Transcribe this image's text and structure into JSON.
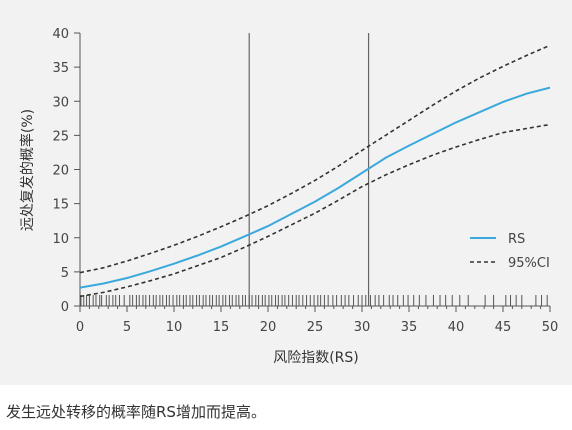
{
  "caption": "发生远处转移的概率随RS增加而提高。",
  "chart_data": {
    "type": "line",
    "xlabel": "风险指数(RS)",
    "ylabel": "远处复发的概率(%)",
    "xlim": [
      0,
      50
    ],
    "ylim": [
      0,
      40
    ],
    "xticks": [
      0,
      5,
      10,
      15,
      20,
      25,
      30,
      35,
      40,
      45,
      50
    ],
    "yticks": [
      0,
      5,
      10,
      15,
      20,
      25,
      30,
      35,
      40
    ],
    "grid": false,
    "legend_position": "right",
    "vertical_lines": [
      18,
      30.7
    ],
    "series": [
      {
        "name": "RS",
        "color": "#3ba9dc",
        "style": "solid",
        "x": [
          0,
          2.5,
          5,
          7.5,
          10,
          12.5,
          15,
          17.5,
          20,
          22.5,
          25,
          27.5,
          30,
          32.5,
          35,
          37.5,
          40,
          42.5,
          45,
          47.5,
          50
        ],
        "y": [
          2.7,
          3.3,
          4.1,
          5.1,
          6.2,
          7.4,
          8.7,
          10.2,
          11.7,
          13.5,
          15.3,
          17.3,
          19.5,
          21.7,
          23.5,
          25.2,
          26.9,
          28.4,
          29.9,
          31.1,
          32.0
        ]
      },
      {
        "name": "95%CI",
        "color": "#333333",
        "style": "dashed",
        "x": [
          0,
          2.5,
          5,
          7.5,
          10,
          12.5,
          15,
          17.5,
          20,
          22.5,
          25,
          27.5,
          30,
          32.5,
          35,
          37.5,
          40,
          42.5,
          45,
          47.5,
          50
        ],
        "y": [
          4.9,
          5.6,
          6.6,
          7.7,
          8.9,
          10.2,
          11.6,
          13.1,
          14.7,
          16.5,
          18.4,
          20.5,
          22.8,
          25.0,
          27.2,
          29.4,
          31.5,
          33.4,
          35.1,
          36.7,
          38.2
        ]
      },
      {
        "name": "",
        "color": "#333333",
        "style": "dashed",
        "x": [
          0,
          2.5,
          5,
          7.5,
          10,
          12.5,
          15,
          17.5,
          20,
          22.5,
          25,
          27.5,
          30,
          32.5,
          35,
          37.5,
          40,
          42.5,
          45,
          47.5,
          50
        ],
        "y": [
          1.4,
          2.0,
          2.8,
          3.7,
          4.7,
          5.9,
          7.1,
          8.6,
          10.2,
          11.9,
          13.6,
          15.5,
          17.5,
          19.2,
          20.7,
          22.1,
          23.3,
          24.4,
          25.4,
          26.0,
          26.6
        ]
      }
    ],
    "rug": [
      0.1,
      0.4,
      0.7,
      1.0,
      1.4,
      1.7,
      2.1,
      2.3,
      2.8,
      3.1,
      3.5,
      3.8,
      4.2,
      4.7,
      5.3,
      5.6,
      6.0,
      6.3,
      6.7,
      7.0,
      7.4,
      7.8,
      8.1,
      8.5,
      8.8,
      9.2,
      9.5,
      9.9,
      10.3,
      10.6,
      11.0,
      11.3,
      11.7,
      12.0,
      12.4,
      12.7,
      13.1,
      13.4,
      13.8,
      14.1,
      14.5,
      14.8,
      15.2,
      15.5,
      15.9,
      16.2,
      16.6,
      16.9,
      17.3,
      17.6,
      18.0,
      18.3,
      18.7,
      19.0,
      19.4,
      19.7,
      20.1,
      20.4,
      20.8,
      21.1,
      21.5,
      21.8,
      22.2,
      22.6,
      23.0,
      23.3,
      23.7,
      24.1,
      24.5,
      24.9,
      25.3,
      25.6,
      26.0,
      26.4,
      26.9,
      27.3,
      27.8,
      28.2,
      28.6,
      29.1,
      29.6,
      30.0,
      30.4,
      30.9,
      31.4,
      31.8,
      32.3,
      32.9,
      33.3,
      33.8,
      34.4,
      34.9,
      35.5,
      36.1,
      36.8,
      37.6,
      38.3,
      38.9,
      39.6,
      40.4,
      41.3,
      43.1,
      44.0,
      45.3,
      45.8,
      46.4,
      47.0,
      48.5,
      49.1,
      49.7
    ],
    "legend": [
      {
        "label": "RS",
        "color": "#3ba9dc",
        "style": "solid"
      },
      {
        "label": "95%CI",
        "color": "#333333",
        "style": "dashed"
      }
    ]
  }
}
